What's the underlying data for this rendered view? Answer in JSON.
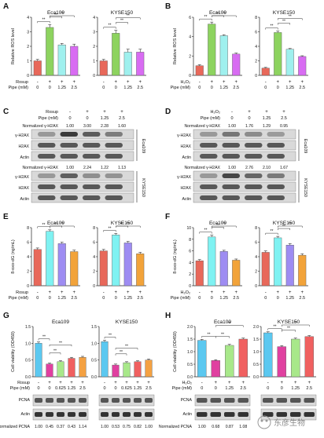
{
  "panels": [
    {
      "letter": "A",
      "type": "bar_pair",
      "ylabel": "Relative ROS level",
      "treatment_label": "Rosup",
      "dose_label": "Pipe (mM)",
      "treatment_signs": [
        "-",
        "+",
        "+",
        "+"
      ],
      "doses": [
        "0",
        "0",
        "1.25",
        "2.5"
      ],
      "colors": [
        "#e8685a",
        "#8dd35f",
        "#9ff0ee",
        "#d86cf2"
      ],
      "charts": [
        {
          "title": "Eca109",
          "ymax": 4,
          "ticks": [
            0,
            1,
            2,
            3,
            4
          ],
          "values": [
            1.0,
            3.3,
            2.1,
            2.0
          ],
          "errors": [
            0.1,
            0.2,
            0.1,
            0.15
          ]
        },
        {
          "title": "KYSE150",
          "ymax": 4,
          "ticks": [
            0,
            1,
            2,
            3,
            4
          ],
          "values": [
            1.0,
            2.9,
            1.6,
            1.6
          ],
          "errors": [
            0.1,
            0.2,
            0.2,
            0.2
          ]
        }
      ]
    },
    {
      "letter": "B",
      "type": "bar_pair",
      "ylabel": "Relative ROS level",
      "treatment_label": "H₂O₂",
      "dose_label": "Pipe (mM)",
      "treatment_signs": [
        "-",
        "+",
        "+",
        "+"
      ],
      "doses": [
        "0",
        "0",
        "1.25",
        "2.5"
      ],
      "colors": [
        "#e8685a",
        "#8dd35f",
        "#9ff0ee",
        "#d86cf2"
      ],
      "charts": [
        {
          "title": "Eca109",
          "ymax": 6,
          "ticks": [
            0,
            2,
            4,
            6
          ],
          "values": [
            1.0,
            5.3,
            4.1,
            2.2
          ],
          "errors": [
            0.1,
            0.2,
            0.1,
            0.1
          ]
        },
        {
          "title": "KYSE150",
          "ymax": 8,
          "ticks": [
            0,
            2,
            4,
            6,
            8
          ],
          "values": [
            1.0,
            5.9,
            3.6,
            2.6
          ],
          "errors": [
            0.1,
            0.2,
            0.1,
            0.1
          ]
        }
      ]
    },
    {
      "letter": "C",
      "type": "blot",
      "treatment_label": "Rosup",
      "dose_label": "Pipe (mM)",
      "norm_label": "Normalized γ-H2AX",
      "treatment_signs": [
        "-",
        "+",
        "+",
        "+"
      ],
      "doses": [
        "0",
        "0",
        "1.25",
        "2.5"
      ],
      "groups": [
        {
          "cell": "Eca109",
          "norm": [
            "1.00",
            "3.00",
            "2.28",
            "1.60"
          ],
          "rows": [
            "γ-H2AX",
            "H2AX",
            "Actin"
          ]
        },
        {
          "cell": "KYSE150",
          "norm": [
            "1.00",
            "2.24",
            "1.22",
            "1.13"
          ],
          "rows": [
            "γ-H2AX",
            "H2AX",
            "Actin"
          ]
        }
      ]
    },
    {
      "letter": "D",
      "type": "blot",
      "treatment_label": "H₂O₂",
      "dose_label": "Pipe (mM)",
      "norm_label": "Normalized γ-H2AX",
      "treatment_signs": [
        "-",
        "+",
        "+",
        "+"
      ],
      "doses": [
        "0",
        "0",
        "1.25",
        "2.5"
      ],
      "groups": [
        {
          "cell": "Eca109",
          "norm": [
            "1.00",
            "1.76",
            "1.29",
            "0.95"
          ],
          "rows": [
            "γ-H2AX",
            "H2AX",
            "Actin"
          ]
        },
        {
          "cell": "KYSE150",
          "norm": [
            "1.00",
            "2.76",
            "2.10",
            "1.67"
          ],
          "rows": [
            "γ-H2AX",
            "H2AX",
            "Actin"
          ]
        }
      ]
    },
    {
      "letter": "E",
      "type": "bar_pair",
      "ylabel": "8-oxo-dG (ng/mL)",
      "treatment_label": "Rosup",
      "dose_label": "Pipe (mM)",
      "treatment_signs": [
        "-",
        "+",
        "+",
        "+"
      ],
      "doses": [
        "0",
        "0",
        "1.25",
        "2.5"
      ],
      "colors": [
        "#e8685a",
        "#7ff2f2",
        "#9e8cf2",
        "#f2a33a"
      ],
      "charts": [
        {
          "title": "Eca109",
          "ymax": 8,
          "ticks": [
            0,
            2,
            4,
            6,
            8
          ],
          "values": [
            5.0,
            7.5,
            5.8,
            4.7
          ],
          "errors": [
            0.2,
            0.2,
            0.2,
            0.2
          ]
        },
        {
          "title": "KYSE150",
          "ymax": 8,
          "ticks": [
            0,
            2,
            4,
            6,
            8
          ],
          "values": [
            4.8,
            7.0,
            5.9,
            4.4
          ],
          "errors": [
            0.2,
            0.2,
            0.2,
            0.2
          ]
        }
      ]
    },
    {
      "letter": "F",
      "type": "bar_pair",
      "ylabel": "8-oxo-dG (ng/mL)",
      "treatment_label": "H₂O₂",
      "dose_label": "Pipe (mM)",
      "treatment_signs": [
        "-",
        "+",
        "+",
        "+"
      ],
      "doses": [
        "0",
        "0",
        "1.25",
        "2.5"
      ],
      "colors": [
        "#e8685a",
        "#7ff2f2",
        "#9e8cf2",
        "#f2a33a"
      ],
      "charts": [
        {
          "title": "Eca109",
          "ymax": 10,
          "ticks": [
            0,
            2,
            4,
            6,
            8,
            10
          ],
          "values": [
            4.3,
            8.4,
            5.9,
            4.4
          ],
          "errors": [
            0.2,
            0.3,
            0.2,
            0.2
          ]
        },
        {
          "title": "KYSE150",
          "ymax": 8,
          "ticks": [
            0,
            2,
            4,
            6,
            8
          ],
          "values": [
            4.6,
            6.6,
            5.6,
            4.2
          ],
          "errors": [
            0.2,
            0.2,
            0.2,
            0.2
          ]
        }
      ]
    },
    {
      "letter": "G",
      "type": "bar_blot",
      "ylabel": "Cell viability (OD450)",
      "treatment_label": "Rosup",
      "dose_label": "Pipe (mM)",
      "treatment_signs": [
        "-",
        "+",
        "+",
        "+",
        "+"
      ],
      "doses": [
        "0",
        "0",
        "0.625",
        "1.25",
        "2.5"
      ],
      "colors": [
        "#5bc8f0",
        "#e040a0",
        "#a8e88a",
        "#f06060",
        "#f4a142"
      ],
      "blot_rows": [
        "PCNA",
        "Actin"
      ],
      "norm_label": "Normalized PCNA",
      "charts": [
        {
          "title": "Eca109",
          "ymax": 1.5,
          "ticks": [
            0.0,
            0.5,
            1.0,
            1.5
          ],
          "values": [
            1.0,
            0.38,
            0.45,
            0.55,
            0.58
          ],
          "errors": [
            0.04,
            0.03,
            0.03,
            0.03,
            0.03
          ],
          "norm": [
            "1.00",
            "0.45",
            "0.37",
            "0.43",
            "1.14"
          ]
        },
        {
          "title": "KYSE150",
          "ymax": 1.5,
          "ticks": [
            0.0,
            0.5,
            1.0,
            1.5
          ],
          "values": [
            1.05,
            0.35,
            0.42,
            0.45,
            0.5
          ],
          "errors": [
            0.04,
            0.03,
            0.03,
            0.03,
            0.03
          ],
          "norm": [
            "1.00",
            "0.53",
            "0.75",
            "0.82",
            "1.00"
          ]
        }
      ]
    },
    {
      "letter": "H",
      "type": "bar_blot",
      "ylabel": "Cell viability (OD450)",
      "treatment_label": "H₂O₂",
      "dose_label": "Pipe (mM)",
      "treatment_signs": [
        "-",
        "+",
        "+",
        "+"
      ],
      "doses": [
        "0",
        "0",
        "1.25",
        "2.5"
      ],
      "colors": [
        "#5bc8f0",
        "#e040a0",
        "#a8e88a",
        "#f06060"
      ],
      "blot_rows": [
        "PCNA",
        "Actin"
      ],
      "norm_label": "Normalized PCNA",
      "charts": [
        {
          "title": "Eca109",
          "ymax": 2.0,
          "ticks": [
            0.0,
            0.5,
            1.0,
            1.5,
            2.0
          ],
          "values": [
            1.45,
            0.65,
            1.25,
            1.5
          ],
          "errors": [
            0.04,
            0.03,
            0.04,
            0.04
          ],
          "norm": [
            "1.00",
            "0.68",
            "0.87",
            "1.08"
          ]
        },
        {
          "title": "KYSE150",
          "ymax": 2.0,
          "ticks": [
            0.0,
            0.5,
            1.0,
            1.5,
            2.0
          ],
          "values": [
            1.75,
            1.2,
            1.5,
            1.6
          ],
          "errors": [
            0.04,
            0.04,
            0.04,
            0.04
          ],
          "norm": []
        }
      ]
    }
  ],
  "watermark": "东彦生物"
}
